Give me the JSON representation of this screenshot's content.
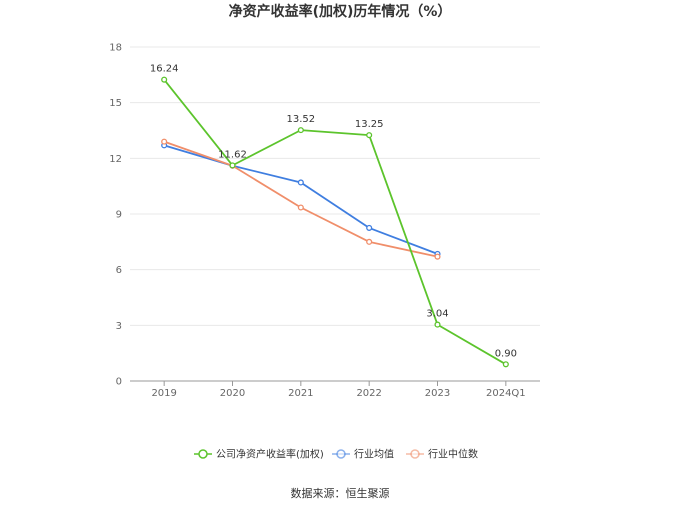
{
  "chart_data": {
    "type": "line",
    "title": "净资产收益率(加权)历年情况（%）",
    "xlabel": "",
    "ylabel": "",
    "categories": [
      "2019",
      "2020",
      "2021",
      "2022",
      "2023",
      "2024Q1"
    ],
    "ylim": [
      0,
      18
    ],
    "yticks": [
      "0",
      "3",
      "6",
      "9",
      "12",
      "15",
      "18"
    ],
    "grid": true,
    "legend_position": "bottom",
    "series": [
      {
        "name": "公司净资产收益率(加权)",
        "color": "#5cc42c",
        "values": [
          16.24,
          11.62,
          13.52,
          13.25,
          3.04,
          0.9
        ],
        "labels": [
          "16.24",
          "11.62",
          "13.52",
          "13.25",
          "3.04",
          "0.90"
        ]
      },
      {
        "name": "行业均值",
        "color": "#3f7ee0",
        "values": [
          12.7,
          11.6,
          10.7,
          8.25,
          6.85,
          null
        ]
      },
      {
        "name": "行业中位数",
        "color": "#f08e6a",
        "values": [
          12.9,
          11.6,
          9.35,
          7.5,
          6.7,
          null
        ]
      }
    ],
    "source": "数据来源：恒生聚源"
  }
}
